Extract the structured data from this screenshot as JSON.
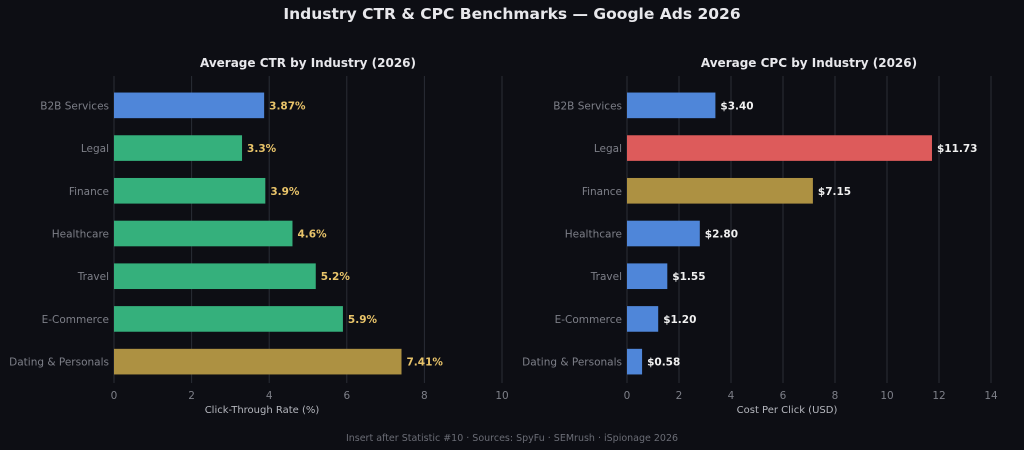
{
  "title": "Industry CTR & CPC Benchmarks  —  Google Ads 2026",
  "footer": "Insert after Statistic #10  ·  Sources: SpyFu · SEMrush · iSpionage 2026",
  "colors": {
    "background": "#0d0e14",
    "grid": "#2a2d36",
    "title_text": "#e8e8ec",
    "axis_text": "#7d7f88",
    "blue": "#4f86d9",
    "green": "#35b07c",
    "gold": "#ad9142",
    "red": "#dd5b5b",
    "ctr_label": "#e9c46a",
    "cpc_label": "#f0f0f0"
  },
  "chart_data": [
    {
      "type": "bar",
      "orientation": "horizontal",
      "title": "Average CTR by Industry (2026)",
      "xlabel": "Click-Through Rate (%)",
      "ylabel": "",
      "xlim": [
        0,
        10
      ],
      "xticks": [
        "0",
        "2",
        "4",
        "6",
        "8",
        "10"
      ],
      "grid": true,
      "categories": [
        "B2B Services",
        "Legal",
        "Finance",
        "Healthcare",
        "Travel",
        "E-Commerce",
        "Dating & Personals"
      ],
      "values": [
        3.87,
        3.3,
        3.9,
        4.6,
        5.2,
        5.9,
        7.41
      ],
      "value_labels": [
        "3.87%",
        "3.3%",
        "3.9%",
        "4.6%",
        "5.2%",
        "5.9%",
        "7.41%"
      ],
      "bar_colors": [
        "blue",
        "green",
        "green",
        "green",
        "green",
        "green",
        "gold"
      ],
      "label_color": "ctr_label"
    },
    {
      "type": "bar",
      "orientation": "horizontal",
      "title": "Average CPC by Industry (2026)",
      "xlabel": "Cost Per Click (USD)",
      "ylabel": "",
      "xlim": [
        0,
        14
      ],
      "xticks": [
        "0",
        "2",
        "4",
        "6",
        "8",
        "10",
        "12",
        "14"
      ],
      "grid": true,
      "categories": [
        "B2B Services",
        "Legal",
        "Finance",
        "Healthcare",
        "Travel",
        "E-Commerce",
        "Dating & Personals"
      ],
      "values": [
        3.4,
        11.73,
        7.15,
        2.8,
        1.55,
        1.2,
        0.58
      ],
      "value_labels": [
        "$3.40",
        "$11.73",
        "$7.15",
        "$2.80",
        "$1.55",
        "$1.20",
        "$0.58"
      ],
      "bar_colors": [
        "blue",
        "red",
        "gold",
        "blue",
        "blue",
        "blue",
        "blue"
      ],
      "label_color": "cpc_label"
    }
  ]
}
